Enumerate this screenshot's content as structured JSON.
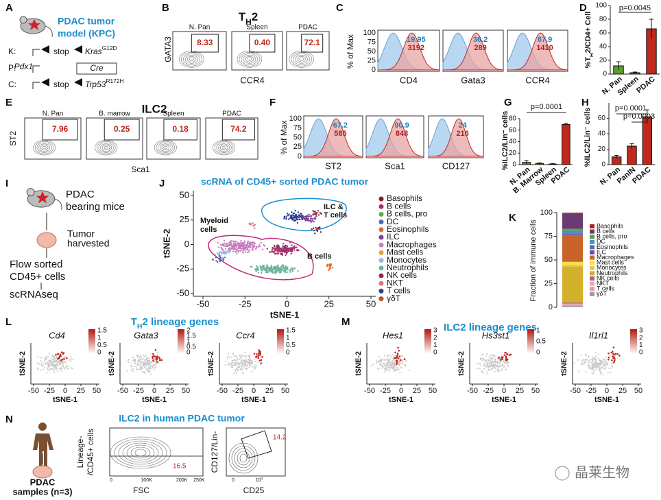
{
  "panel_labels": [
    "A",
    "B",
    "C",
    "D",
    "E",
    "F",
    "G",
    "H",
    "I",
    "J",
    "K",
    "L",
    "M",
    "N"
  ],
  "A": {
    "title": [
      "PDAC tumor",
      "model (KPC)"
    ],
    "rows": [
      {
        "key": "K:",
        "stop": "stop",
        "gene": "Kras",
        "sup": "G12D"
      },
      {
        "key": "P:",
        "gene": "Pdx1",
        "box": "Cre"
      },
      {
        "key": "C:",
        "stop": "stop",
        "gene": "Trp53",
        "sup": "R172H"
      }
    ]
  },
  "B": {
    "title": "T",
    "title_sub": "H",
    "title_end": "2",
    "ylabel": "GATA3",
    "xlabel": "CCR4",
    "plots": [
      {
        "name": "N. Pan",
        "gate": "8.33"
      },
      {
        "name": "Spleen",
        "gate": "0.40"
      },
      {
        "name": "PDAC",
        "gate": "72.1"
      }
    ]
  },
  "C": {
    "ylabel": "% of Max",
    "yticks": [
      "100",
      "75",
      "50",
      "25",
      "0"
    ],
    "plots": [
      {
        "name": "CD4",
        "blue": "19.95",
        "red": "3192"
      },
      {
        "name": "Gata3",
        "blue": "36.2",
        "red": "289"
      },
      {
        "name": "CCR4",
        "blue": "67.9",
        "red": "1410"
      }
    ]
  },
  "D": {
    "ylabel": [
      "%T",
      "H",
      "2/CD4+ Cell"
    ],
    "ylim": [
      0,
      100
    ],
    "yticks": [
      0,
      20,
      40,
      60,
      80,
      100
    ],
    "categories": [
      "N. Pan",
      "Spleen",
      "PDAC"
    ],
    "values": [
      12,
      2,
      66
    ],
    "errors": [
      6,
      1,
      14
    ],
    "colors": [
      "#5aa02c",
      "#666666",
      "#c0281c"
    ],
    "pvalue": "p=0.0045"
  },
  "E": {
    "title": "ILC2",
    "ylabel": "ST2",
    "xlabel": "Sca1",
    "plots": [
      {
        "name": "N. Pan",
        "gate": "7.96"
      },
      {
        "name": "B. marrow",
        "gate": "0.25"
      },
      {
        "name": "Spleen",
        "gate": "0.18"
      },
      {
        "name": "PDAC",
        "gate": "74.2"
      }
    ]
  },
  "F": {
    "ylabel": "% of Max",
    "yticks": [
      "100",
      "75",
      "50",
      "25",
      "0"
    ],
    "plots": [
      {
        "name": "ST2",
        "blue": "67.2",
        "red": "585"
      },
      {
        "name": "Sca1",
        "blue": "90.9",
        "red": "848"
      },
      {
        "name": "CD127",
        "blue": "24",
        "red": "216"
      }
    ]
  },
  "G": {
    "ylabel": "%ILC2/Lin⁻ cells",
    "ylim": [
      0,
      80
    ],
    "yticks": [
      0,
      20,
      40,
      60,
      80
    ],
    "categories": [
      "N. Pan",
      "B. Marrow",
      "Spleen",
      "PDAC"
    ],
    "values": [
      4,
      2,
      1,
      70
    ],
    "errors": [
      3,
      1,
      1,
      2
    ],
    "colors": [
      "#5aa02c",
      "#5aa02c",
      "#666666",
      "#c0281c"
    ],
    "pvalue": "p=0.0001"
  },
  "H": {
    "ylabel": "%ILC2/Lin⁻ cells",
    "ylim": [
      0,
      80
    ],
    "yticks": [
      0,
      20,
      40,
      60
    ],
    "categories": [
      "N. Pan",
      "PanIN",
      "PDAC"
    ],
    "values": [
      10,
      24,
      62
    ],
    "errors": [
      2,
      3,
      9
    ],
    "colors": [
      "#c0281c",
      "#c0281c",
      "#c0281c"
    ],
    "pvalues": [
      "p=0.0001",
      "p=0.0003"
    ]
  },
  "I": {
    "steps": [
      "PDAC",
      "bearing mice",
      "Tumor",
      "harvested",
      "Flow sorted",
      "CD45+ cells",
      "scRNAseq"
    ]
  },
  "J": {
    "title": "scRNA of CD45+ sorted PDAC tumor",
    "xlabel": "tSNE-1",
    "ylabel": "tSNE-2",
    "xlim": [
      -55,
      55
    ],
    "ylim": [
      -55,
      55
    ],
    "xticks": [
      -50,
      -25,
      0,
      25,
      50
    ],
    "yticks": [
      -50,
      -25,
      0,
      25,
      50
    ],
    "annotations": [
      "Myeloid",
      "cells",
      "ILC &",
      "T cells",
      "B cells"
    ],
    "legend": [
      {
        "name": "Basophils",
        "color": "#8b1a1a"
      },
      {
        "name": "B cells",
        "color": "#a0306a"
      },
      {
        "name": "B cells, pro",
        "color": "#6aa84f"
      },
      {
        "name": "DC",
        "color": "#4a6fb5"
      },
      {
        "name": "Eosinophils",
        "color": "#e06b2b"
      },
      {
        "name": "ILC",
        "color": "#7b3f98"
      },
      {
        "name": "Macrophages",
        "color": "#c87ec0"
      },
      {
        "name": "Mast cells",
        "color": "#e8a13a"
      },
      {
        "name": "Monocytes",
        "color": "#9ab4de"
      },
      {
        "name": "Neutrophils",
        "color": "#6fb59a"
      },
      {
        "name": "NK cells",
        "color": "#8b2a4a"
      },
      {
        "name": "NKT",
        "color": "#d47a7a"
      },
      {
        "name": "T cells",
        "color": "#2a3f8f"
      },
      {
        "name": "γδT",
        "color": "#b5542a"
      }
    ]
  },
  "K": {
    "ylabel": "Fraction of immune cells",
    "ylim": [
      0,
      100
    ],
    "yticks": [
      0,
      25,
      50,
      75,
      100
    ],
    "segments": [
      {
        "name": "γδT",
        "color": "#9a9a9a",
        "value": 1
      },
      {
        "name": "T cells",
        "color": "#d9a0b0",
        "value": 2
      },
      {
        "name": "NKT",
        "color": "#e7a9b7",
        "value": 1
      },
      {
        "name": "NK cells",
        "color": "#b06080",
        "value": 1
      },
      {
        "name": "Neutrophils",
        "color": "#d4b12a",
        "value": 38
      },
      {
        "name": "Monocytes",
        "color": "#e8c65a",
        "value": 2
      },
      {
        "name": "Mast cells",
        "color": "#f5e23a",
        "value": 3
      },
      {
        "name": "Macrophages",
        "color": "#c8642a",
        "value": 28
      },
      {
        "name": "ILC",
        "color": "#7a4a9a",
        "value": 1
      },
      {
        "name": "Eosinophils",
        "color": "#4f6fb0",
        "value": 1
      },
      {
        "name": "DC",
        "color": "#4a8fc0",
        "value": 3
      },
      {
        "name": "B cells, pro",
        "color": "#5aa04c",
        "value": 2
      },
      {
        "name": "B cells",
        "color": "#6a3a70",
        "value": 16
      },
      {
        "name": "Basophils",
        "color": "#b02020",
        "value": 1
      }
    ]
  },
  "L": {
    "title": [
      "T",
      "H",
      "2 lineage genes"
    ],
    "axis_label_x": "tSNE-1",
    "axis_label_y": "tSNE-2",
    "xticks": [
      -50,
      -25,
      0,
      25,
      50
    ],
    "plots": [
      {
        "gene": "Cd4",
        "scale": [
          "1.5",
          "1",
          "0.5",
          "0"
        ]
      },
      {
        "gene": "Gata3",
        "scale": [
          "2",
          "1.5",
          "1",
          "0.5",
          "0"
        ]
      },
      {
        "gene": "Ccr4",
        "scale": [
          "1.5",
          "1",
          "0.5",
          "0"
        ]
      }
    ]
  },
  "M": {
    "title": "ILC2 lineage genes",
    "axis_label_x": "tSNE-1",
    "axis_label_y": "tSNE-2",
    "xticks": [
      -50,
      -25,
      0,
      25,
      50
    ],
    "plots": [
      {
        "gene": "Hes1",
        "scale": [
          "3",
          "2",
          "1",
          "0"
        ]
      },
      {
        "gene": "Hs3st1",
        "scale": [
          "1",
          "0.5",
          "0"
        ]
      },
      {
        "gene": "Il1rl1",
        "scale": [
          "3",
          "2",
          "1",
          "0"
        ]
      }
    ]
  },
  "N": {
    "title": "ILC2 in human PDAC tumor",
    "samples": [
      "PDAC",
      "samples (n=3)"
    ],
    "plot1": {
      "ylabel": [
        "Lineage-",
        "/CD45+ cells"
      ],
      "xlabel": "FSC",
      "xticks": [
        "0",
        "100K",
        "200K",
        "250K"
      ],
      "gate": "16.5"
    },
    "plot2": {
      "ylabel": "CD127/Lin-",
      "xlabel": "CD25",
      "xticks": [
        "0",
        "10"
      ],
      "xtick_exp": "4",
      "gate": "14.2"
    }
  },
  "watermark": "晶莱生物"
}
